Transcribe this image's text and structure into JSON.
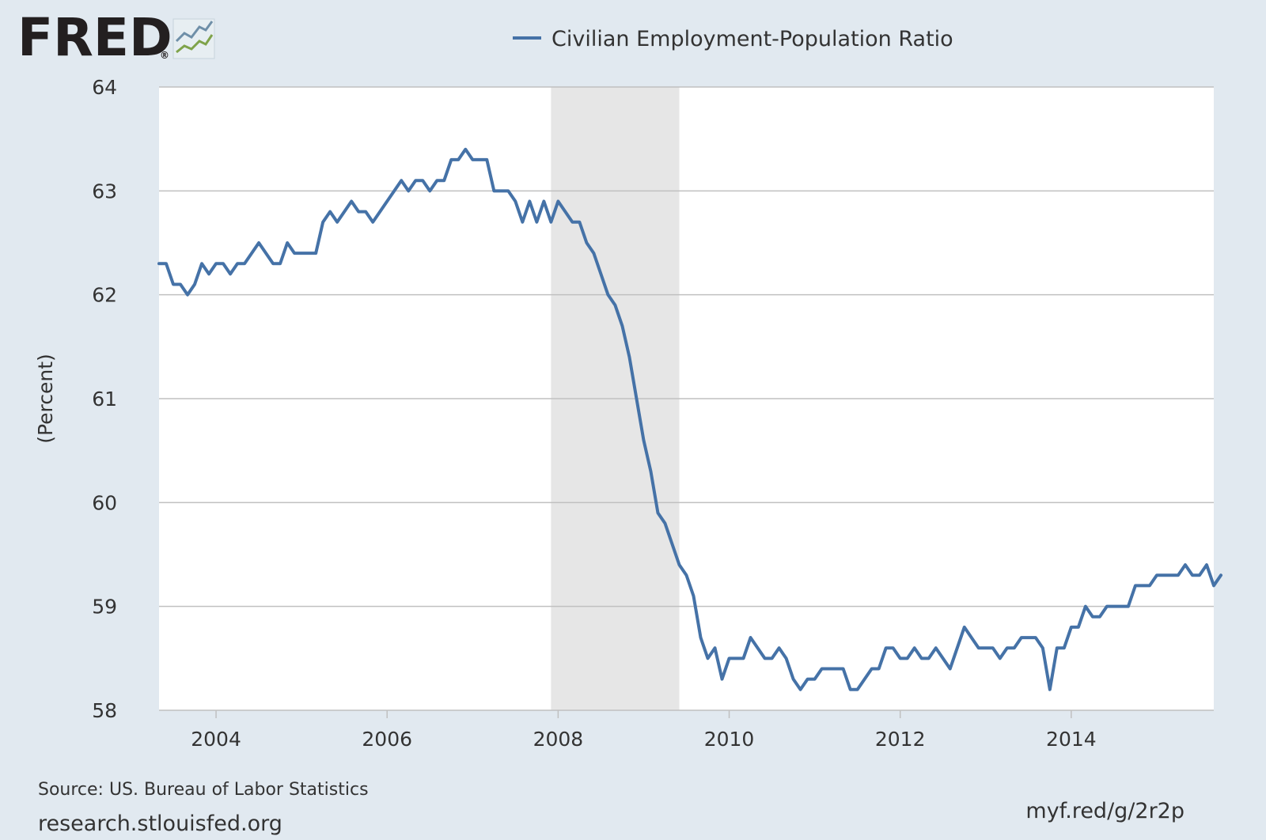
{
  "header": {
    "logo_text": "FRED",
    "logo_registered": "®",
    "logo_icon": "fred-line-chart-icon"
  },
  "footer": {
    "source": "Source: US. Bureau of Labor Statistics",
    "site": "research.stlouisfed.org",
    "short_link": "myf.red/g/2r2p"
  },
  "chart_data": {
    "type": "line",
    "title": "",
    "ylabel": "(Percent)",
    "xlabel": "",
    "ylim": [
      58,
      64
    ],
    "yticks": [
      58,
      59,
      60,
      61,
      62,
      63,
      64
    ],
    "xlim": [
      "2003-05-01",
      "2015-09-01"
    ],
    "xticks": [
      "2004",
      "2006",
      "2008",
      "2010",
      "2012",
      "2014"
    ],
    "grid": true,
    "legend_position": "top-center",
    "colors": {
      "line": "#4572a7",
      "recession": "#e6e6e6",
      "plot_bg": "#ffffff",
      "page_bg": "#e1e9f0"
    },
    "recessions": [
      {
        "start": "2007-12-01",
        "end": "2009-06-01"
      }
    ],
    "series": [
      {
        "name": "Civilian Employment-Population Ratio",
        "start": "2003-05",
        "frequency": "monthly",
        "values": [
          62.3,
          62.3,
          62.1,
          62.1,
          62.0,
          62.1,
          62.3,
          62.2,
          62.3,
          62.3,
          62.2,
          62.3,
          62.3,
          62.4,
          62.5,
          62.4,
          62.3,
          62.3,
          62.5,
          62.4,
          62.4,
          62.4,
          62.4,
          62.7,
          62.8,
          62.7,
          62.8,
          62.9,
          62.8,
          62.8,
          62.7,
          62.8,
          62.9,
          63.0,
          63.1,
          63.0,
          63.1,
          63.1,
          63.0,
          63.1,
          63.1,
          63.3,
          63.3,
          63.4,
          63.3,
          63.3,
          63.3,
          63.0,
          63.0,
          63.0,
          62.9,
          62.7,
          62.9,
          62.7,
          62.9,
          62.7,
          62.9,
          62.8,
          62.7,
          62.7,
          62.5,
          62.4,
          62.2,
          62.0,
          61.9,
          61.7,
          61.4,
          61.0,
          60.6,
          60.3,
          59.9,
          59.8,
          59.6,
          59.4,
          59.3,
          59.1,
          58.7,
          58.5,
          58.6,
          58.3,
          58.5,
          58.5,
          58.5,
          58.7,
          58.6,
          58.5,
          58.5,
          58.6,
          58.5,
          58.3,
          58.2,
          58.3,
          58.3,
          58.4,
          58.4,
          58.4,
          58.4,
          58.2,
          58.2,
          58.3,
          58.4,
          58.4,
          58.6,
          58.6,
          58.5,
          58.5,
          58.6,
          58.5,
          58.5,
          58.6,
          58.5,
          58.4,
          58.6,
          58.8,
          58.7,
          58.6,
          58.6,
          58.6,
          58.5,
          58.6,
          58.6,
          58.7,
          58.7,
          58.7,
          58.6,
          58.2,
          58.6,
          58.6,
          58.8,
          58.8,
          59.0,
          58.9,
          58.9,
          59.0,
          59.0,
          59.0,
          59.0,
          59.2,
          59.2,
          59.2,
          59.3,
          59.3,
          59.3,
          59.3,
          59.4,
          59.3,
          59.3,
          59.4,
          59.2,
          59.3
        ]
      }
    ]
  }
}
